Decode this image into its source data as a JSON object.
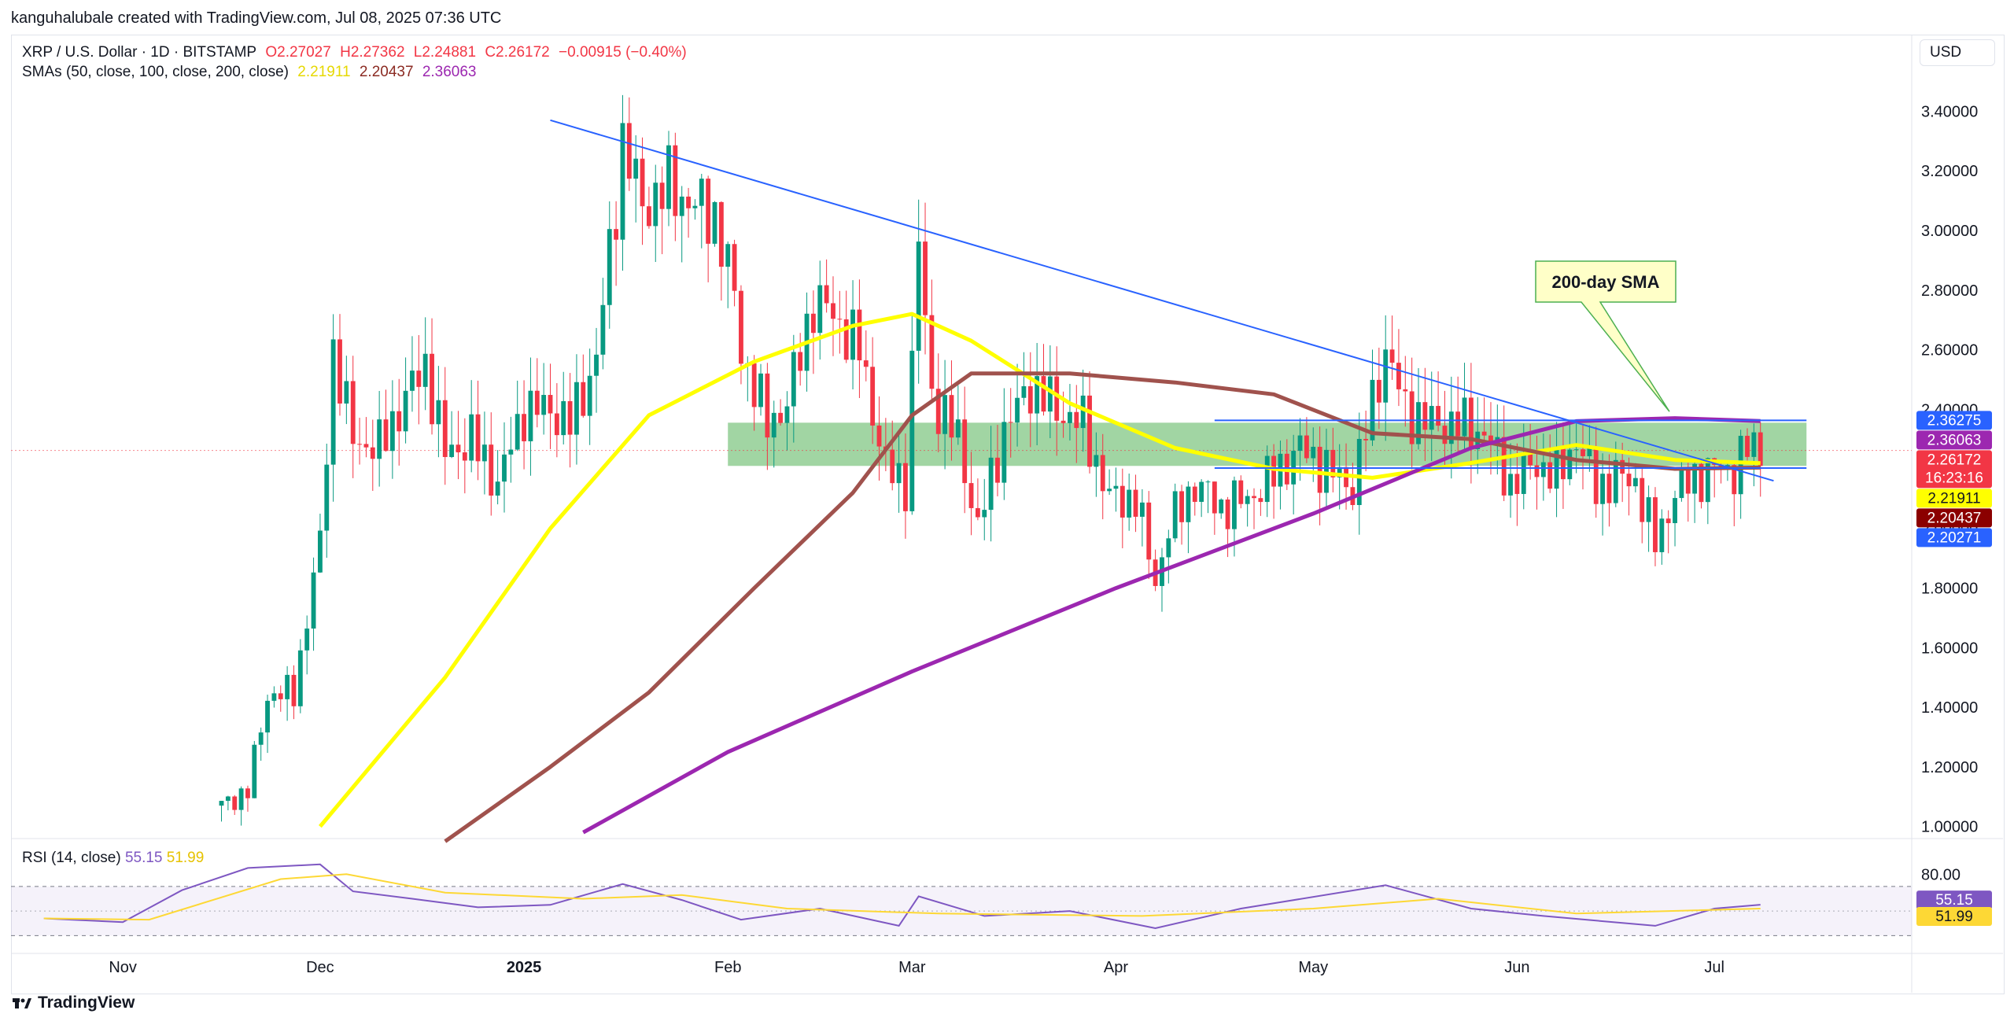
{
  "header": {
    "credit": "kanguhalubale created with TradingView.com, Jul 08, 2025 07:36 UTC",
    "symbol": "XRP / U.S. Dollar · 1D · BITSTAMP",
    "open": "O2.27027",
    "high": "H2.27362",
    "low": "L2.24881",
    "close": "C2.26172",
    "change": "−0.00915 (−0.40%)",
    "sma_label": "SMAs (50, close, 100, close, 200, close)",
    "sma50": "2.21911",
    "sma100": "2.20437",
    "sma200": "2.36063",
    "currency": "USD",
    "rsi_label": "RSI (14, close)",
    "rsi_value": "55.15",
    "rsi_ma_value": "51.99",
    "brand": "TradingView"
  },
  "colors": {
    "up": "#089981",
    "down": "#f23645",
    "sma50": "#ffff00",
    "sma100": "#a0524d",
    "sma200": "#9c27b0",
    "trendline": "#2962ff",
    "zone": "#81c784",
    "rsi": "#7e57c2",
    "rsi_ma": "#fdd835"
  },
  "annotation": {
    "label": "200-day SMA"
  },
  "chart_data": {
    "type": "candlestick",
    "title": "XRP / U.S. Dollar · 1D · BITSTAMP",
    "ylim": [
      0.97,
      3.52
    ],
    "y_ticks": [
      1.0,
      1.2,
      1.4,
      1.6,
      1.8,
      2.0,
      2.2,
      2.4,
      2.6,
      2.8,
      3.0,
      3.2,
      3.4
    ],
    "y_tick_labels": [
      "1.00000",
      "1.20000",
      "1.40000",
      "1.60000",
      "1.80000",
      "2.00000",
      "2.20000",
      "2.40000",
      "2.60000",
      "2.80000",
      "3.00000",
      "3.20000",
      "3.40000"
    ],
    "x_ticks": [
      {
        "date": "2024-11-01",
        "label": "Nov"
      },
      {
        "date": "2024-12-01",
        "label": "Dec"
      },
      {
        "date": "2025-01-01",
        "label": "2025"
      },
      {
        "date": "2025-02-01",
        "label": "Feb"
      },
      {
        "date": "2025-03-01",
        "label": "Mar"
      },
      {
        "date": "2025-04-01",
        "label": "Apr"
      },
      {
        "date": "2025-05-01",
        "label": "May"
      },
      {
        "date": "2025-06-01",
        "label": "Jun"
      },
      {
        "date": "2025-07-01",
        "label": "Jul"
      }
    ],
    "closes": [
      {
        "date": "2024-11-16",
        "close": 1.07
      },
      {
        "date": "2024-11-20",
        "close": 1.12
      },
      {
        "date": "2024-11-23",
        "close": 1.44
      },
      {
        "date": "2024-11-27",
        "close": 1.45
      },
      {
        "date": "2024-12-01",
        "close": 1.95
      },
      {
        "date": "2024-12-03",
        "close": 2.6
      },
      {
        "date": "2024-12-06",
        "close": 2.3
      },
      {
        "date": "2024-12-10",
        "close": 2.27
      },
      {
        "date": "2024-12-13",
        "close": 2.4
      },
      {
        "date": "2024-12-17",
        "close": 2.55
      },
      {
        "date": "2024-12-20",
        "close": 2.25
      },
      {
        "date": "2024-12-24",
        "close": 2.3
      },
      {
        "date": "2024-12-28",
        "close": 2.15
      },
      {
        "date": "2025-01-01",
        "close": 2.4
      },
      {
        "date": "2025-01-05",
        "close": 2.4
      },
      {
        "date": "2025-01-08",
        "close": 2.35
      },
      {
        "date": "2025-01-12",
        "close": 2.57
      },
      {
        "date": "2025-01-15",
        "close": 3.1
      },
      {
        "date": "2025-01-16",
        "close": 3.3
      },
      {
        "date": "2025-01-19",
        "close": 3.08
      },
      {
        "date": "2025-01-23",
        "close": 3.15
      },
      {
        "date": "2025-01-27",
        "close": 3.08
      },
      {
        "date": "2025-01-30",
        "close": 3.05
      },
      {
        "date": "2025-02-02",
        "close": 2.78
      },
      {
        "date": "2025-02-03",
        "close": 2.6
      },
      {
        "date": "2025-02-07",
        "close": 2.35
      },
      {
        "date": "2025-02-10",
        "close": 2.42
      },
      {
        "date": "2025-02-14",
        "close": 2.76
      },
      {
        "date": "2025-02-17",
        "close": 2.72
      },
      {
        "date": "2025-02-21",
        "close": 2.6
      },
      {
        "date": "2025-02-25",
        "close": 2.2
      },
      {
        "date": "2025-02-28",
        "close": 2.15
      },
      {
        "date": "2025-03-02",
        "close": 2.95
      },
      {
        "date": "2025-03-04",
        "close": 2.45
      },
      {
        "date": "2025-03-08",
        "close": 2.3
      },
      {
        "date": "2025-03-11",
        "close": 2.0
      },
      {
        "date": "2025-03-15",
        "close": 2.33
      },
      {
        "date": "2025-03-19",
        "close": 2.48
      },
      {
        "date": "2025-03-23",
        "close": 2.4
      },
      {
        "date": "2025-03-27",
        "close": 2.35
      },
      {
        "date": "2025-03-31",
        "close": 2.1
      },
      {
        "date": "2025-04-04",
        "close": 2.1
      },
      {
        "date": "2025-04-07",
        "close": 1.82
      },
      {
        "date": "2025-04-09",
        "close": 2.0
      },
      {
        "date": "2025-04-13",
        "close": 2.15
      },
      {
        "date": "2025-04-17",
        "close": 2.07
      },
      {
        "date": "2025-04-21",
        "close": 2.1
      },
      {
        "date": "2025-04-25",
        "close": 2.18
      },
      {
        "date": "2025-04-29",
        "close": 2.27
      },
      {
        "date": "2025-05-03",
        "close": 2.2
      },
      {
        "date": "2025-05-07",
        "close": 2.14
      },
      {
        "date": "2025-05-09",
        "close": 2.33
      },
      {
        "date": "2025-05-12",
        "close": 2.6
      },
      {
        "date": "2025-05-15",
        "close": 2.4
      },
      {
        "date": "2025-05-19",
        "close": 2.35
      },
      {
        "date": "2025-05-23",
        "close": 2.35
      },
      {
        "date": "2025-05-27",
        "close": 2.32
      },
      {
        "date": "2025-05-31",
        "close": 2.15
      },
      {
        "date": "2025-06-04",
        "close": 2.22
      },
      {
        "date": "2025-06-07",
        "close": 2.17
      },
      {
        "date": "2025-06-10",
        "close": 2.3
      },
      {
        "date": "2025-06-13",
        "close": 2.14
      },
      {
        "date": "2025-06-16",
        "close": 2.17
      },
      {
        "date": "2025-06-19",
        "close": 2.16
      },
      {
        "date": "2025-06-22",
        "close": 1.95
      },
      {
        "date": "2025-06-25",
        "close": 2.12
      },
      {
        "date": "2025-06-28",
        "close": 2.17
      },
      {
        "date": "2025-07-01",
        "close": 2.2
      },
      {
        "date": "2025-07-04",
        "close": 2.2
      },
      {
        "date": "2025-07-06",
        "close": 2.27
      },
      {
        "date": "2025-07-08",
        "close": 2.26172
      }
    ],
    "sma50_path": [
      {
        "date": "2024-12-01",
        "value": 1.0
      },
      {
        "date": "2024-12-20",
        "value": 1.5
      },
      {
        "date": "2025-01-05",
        "value": 2.0
      },
      {
        "date": "2025-01-20",
        "value": 2.38
      },
      {
        "date": "2025-02-05",
        "value": 2.56
      },
      {
        "date": "2025-02-20",
        "value": 2.68
      },
      {
        "date": "2025-03-01",
        "value": 2.72
      },
      {
        "date": "2025-03-10",
        "value": 2.63
      },
      {
        "date": "2025-03-25",
        "value": 2.42
      },
      {
        "date": "2025-04-10",
        "value": 2.27
      },
      {
        "date": "2025-04-25",
        "value": 2.2
      },
      {
        "date": "2025-05-10",
        "value": 2.17
      },
      {
        "date": "2025-05-25",
        "value": 2.22
      },
      {
        "date": "2025-06-10",
        "value": 2.28
      },
      {
        "date": "2025-06-25",
        "value": 2.23
      },
      {
        "date": "2025-07-08",
        "value": 2.21911
      }
    ],
    "sma100_path": [
      {
        "date": "2024-12-20",
        "value": 0.95
      },
      {
        "date": "2025-01-05",
        "value": 1.2
      },
      {
        "date": "2025-01-20",
        "value": 1.45
      },
      {
        "date": "2025-02-05",
        "value": 1.8
      },
      {
        "date": "2025-02-20",
        "value": 2.12
      },
      {
        "date": "2025-03-01",
        "value": 2.38
      },
      {
        "date": "2025-03-10",
        "value": 2.52
      },
      {
        "date": "2025-03-25",
        "value": 2.52
      },
      {
        "date": "2025-04-10",
        "value": 2.49
      },
      {
        "date": "2025-04-25",
        "value": 2.45
      },
      {
        "date": "2025-05-10",
        "value": 2.32
      },
      {
        "date": "2025-05-25",
        "value": 2.3
      },
      {
        "date": "2025-06-10",
        "value": 2.23
      },
      {
        "date": "2025-06-25",
        "value": 2.2
      },
      {
        "date": "2025-07-08",
        "value": 2.20437
      }
    ],
    "sma200_path": [
      {
        "date": "2025-01-10",
        "value": 0.98
      },
      {
        "date": "2025-02-01",
        "value": 1.25
      },
      {
        "date": "2025-03-01",
        "value": 1.52
      },
      {
        "date": "2025-04-01",
        "value": 1.8
      },
      {
        "date": "2025-05-01",
        "value": 2.05
      },
      {
        "date": "2025-05-25",
        "value": 2.27
      },
      {
        "date": "2025-06-10",
        "value": 2.36
      },
      {
        "date": "2025-06-25",
        "value": 2.37
      },
      {
        "date": "2025-07-08",
        "value": 2.36063
      }
    ],
    "trendline_upper": [
      {
        "date": "2025-01-05",
        "value": 3.37
      },
      {
        "date": "2025-07-10",
        "value": 2.16
      }
    ],
    "hlines": [
      {
        "value": 2.36275,
        "from": "2025-04-16",
        "to": "2025-07-15"
      },
      {
        "value": 2.20271,
        "from": "2025-04-16",
        "to": "2025-07-15"
      }
    ],
    "zone": {
      "from": "2025-02-01",
      "to": "2025-07-15",
      "top": 2.355,
      "bottom": 2.21
    },
    "price_labels": [
      {
        "value": 2.36275,
        "text": "2.36275",
        "color": "#2962ff"
      },
      {
        "value": 2.36063,
        "text": "2.36063",
        "color": "#9c27b0"
      },
      {
        "value": 2.26172,
        "text": "2.26172",
        "color": "#f23645",
        "sub": "16:23:16"
      },
      {
        "value": 2.21911,
        "text": "2.21911",
        "color": "#ffff00"
      },
      {
        "value": 2.20437,
        "text": "2.20437",
        "color": "#8b0000"
      },
      {
        "value": 2.20271,
        "text": "2.20271",
        "color": "#2962ff"
      }
    ],
    "rsi": {
      "ylim": [
        20,
        100
      ],
      "bands": [
        70,
        30
      ],
      "tick_labels": [
        "80.00"
      ],
      "labels": [
        {
          "value": 55.15,
          "text": "55.15"
        },
        {
          "value": 51.99,
          "text": "51.99"
        }
      ],
      "values": [
        {
          "date": "2024-10-20",
          "value": 44
        },
        {
          "date": "2024-11-01",
          "value": 41
        },
        {
          "date": "2024-11-10",
          "value": 67
        },
        {
          "date": "2024-11-20",
          "value": 85
        },
        {
          "date": "2024-12-01",
          "value": 88
        },
        {
          "date": "2024-12-06",
          "value": 66
        },
        {
          "date": "2024-12-15",
          "value": 60
        },
        {
          "date": "2024-12-25",
          "value": 53
        },
        {
          "date": "2025-01-05",
          "value": 55
        },
        {
          "date": "2025-01-16",
          "value": 72
        },
        {
          "date": "2025-01-25",
          "value": 59
        },
        {
          "date": "2025-02-03",
          "value": 43
        },
        {
          "date": "2025-02-15",
          "value": 52
        },
        {
          "date": "2025-02-27",
          "value": 38
        },
        {
          "date": "2025-03-02",
          "value": 62
        },
        {
          "date": "2025-03-12",
          "value": 46
        },
        {
          "date": "2025-03-25",
          "value": 50
        },
        {
          "date": "2025-04-07",
          "value": 36
        },
        {
          "date": "2025-04-20",
          "value": 52
        },
        {
          "date": "2025-05-12",
          "value": 71
        },
        {
          "date": "2025-05-25",
          "value": 52
        },
        {
          "date": "2025-06-05",
          "value": 46
        },
        {
          "date": "2025-06-22",
          "value": 38
        },
        {
          "date": "2025-07-01",
          "value": 52
        },
        {
          "date": "2025-07-08",
          "value": 55.15
        }
      ],
      "ma_values": [
        {
          "date": "2024-10-20",
          "value": 44
        },
        {
          "date": "2024-11-05",
          "value": 43
        },
        {
          "date": "2024-11-25",
          "value": 76
        },
        {
          "date": "2024-12-05",
          "value": 80
        },
        {
          "date": "2024-12-20",
          "value": 65
        },
        {
          "date": "2025-01-10",
          "value": 60
        },
        {
          "date": "2025-01-25",
          "value": 63
        },
        {
          "date": "2025-02-10",
          "value": 52
        },
        {
          "date": "2025-03-05",
          "value": 48
        },
        {
          "date": "2025-04-05",
          "value": 46
        },
        {
          "date": "2025-05-01",
          "value": 52
        },
        {
          "date": "2025-05-20",
          "value": 60
        },
        {
          "date": "2025-06-10",
          "value": 48
        },
        {
          "date": "2025-07-08",
          "value": 51.99
        }
      ]
    }
  }
}
